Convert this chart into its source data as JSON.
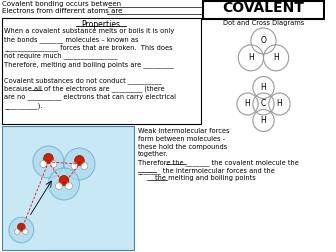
{
  "title": "COVALENT",
  "subtitle": "Dot and Cross Diagrams",
  "line1": "Covalent bonding occurs between",
  "line2": "Electrons from different atoms are",
  "properties_title": "Properties",
  "prop_lines": [
    "When a covalent substance melts or boils it is only",
    "the bonds _______ molecules – known as",
    "________________ forces that are broken.  This does",
    "not require much ________________",
    "Therefore, melting and boiling points are _________",
    "",
    "Covalent substances do not conduct __________",
    "because all of the electrons are _________ (there",
    "are no __________ electrons that can carry electrical",
    "__________)."
  ],
  "weak_lines": [
    "Weak intermolecular forces",
    "form between molecules -",
    "these hold the compounds",
    "together.",
    "Therefore the _______ the covalent molecule the",
    "_______ the intermolecular forces and the",
    "        the melting and boiling points"
  ],
  "bg_color": "#ffffff",
  "img_box_color": "#c8e8f5",
  "img_box_edge": "#5599bb",
  "h2o_circles_color": "#c8e8f5",
  "mol_edge": "#888888"
}
